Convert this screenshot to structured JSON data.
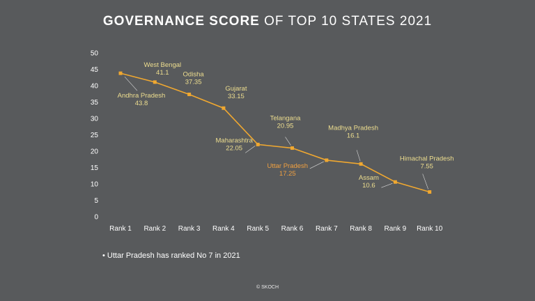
{
  "title": {
    "bold": "GOVERNANCE SCORE",
    "rest": "OF TOP 10 STATES 2021"
  },
  "chart_data": {
    "type": "line",
    "categories": [
      "Rank 1",
      "Rank 2",
      "Rank 3",
      "Rank 4",
      "Rank 5",
      "Rank 6",
      "Rank 7",
      "Rank 8",
      "Rank 9",
      "Rank 10"
    ],
    "states": [
      "Andhra Pradesh",
      "West Bengal",
      "Odisha",
      "Gujarat",
      "Maharashtra",
      "Telangana",
      "Uttar Pradesh",
      "Madhya Pradesh",
      "Assam",
      "Himachal Pradesh"
    ],
    "value_labels": [
      "43.8",
      "41.1",
      "37.35",
      "33.15",
      "22.05",
      "20.95",
      "17.25",
      "16.1",
      "10.6",
      "7.55"
    ],
    "values": [
      43.8,
      41.1,
      37.35,
      33.15,
      22.05,
      20.95,
      17.25,
      16.1,
      10.6,
      7.55
    ],
    "highlight": "Uttar Pradesh",
    "ylim": [
      0,
      50
    ],
    "yticks": [
      0,
      5,
      10,
      15,
      20,
      25,
      30,
      35,
      40,
      45,
      50
    ],
    "line_color": "#f0a830",
    "highlight_color": "#f0a040",
    "label_color": "#eede8f",
    "grid": false,
    "legend": "none"
  },
  "note": "• Uttar Pradesh has ranked No 7 in 2021",
  "footer": "© SKOCH"
}
